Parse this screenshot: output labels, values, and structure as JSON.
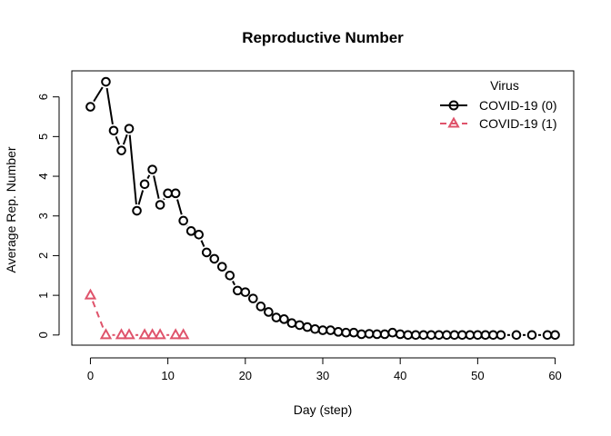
{
  "chart_data": {
    "type": "line",
    "title": "Reproductive Number",
    "xlabel": "Day (step)",
    "ylabel": "Average Rep. Number",
    "xlim": [
      -2.4,
      62.4
    ],
    "ylim": [
      -0.256,
      6.656
    ],
    "x_ticks": [
      0,
      10,
      20,
      30,
      40,
      50,
      60
    ],
    "y_ticks": [
      0,
      1,
      2,
      3,
      4,
      5,
      6
    ],
    "grid": false,
    "legend": {
      "title": "Virus",
      "position": "top-right"
    },
    "series": [
      {
        "name": "COVID-19 (0)",
        "color": "#000000",
        "line_style": "solid",
        "marker": "circle",
        "x": [
          0,
          2,
          3,
          4,
          5,
          6,
          7,
          8,
          9,
          10,
          11,
          12,
          13,
          14,
          15,
          16,
          17,
          18,
          19,
          20,
          21,
          22,
          23,
          24,
          25,
          26,
          27,
          28,
          29,
          30,
          31,
          32,
          33,
          34,
          35,
          36,
          37,
          38,
          39,
          40,
          41,
          42,
          43,
          44,
          45,
          46,
          47,
          48,
          49,
          50,
          51,
          52,
          53,
          55,
          57,
          59,
          60
        ],
        "y": [
          5.75,
          6.38,
          5.15,
          4.65,
          5.2,
          3.13,
          3.8,
          4.17,
          3.28,
          3.57,
          3.57,
          2.88,
          2.62,
          2.53,
          2.08,
          1.92,
          1.72,
          1.5,
          1.12,
          1.08,
          0.92,
          0.72,
          0.58,
          0.44,
          0.4,
          0.3,
          0.25,
          0.2,
          0.15,
          0.12,
          0.12,
          0.08,
          0.06,
          0.06,
          0.02,
          0.03,
          0.02,
          0.02,
          0.06,
          0.02,
          0.0,
          0.0,
          0.0,
          0.0,
          0.0,
          0.0,
          0.0,
          0.0,
          0.0,
          0.0,
          0.0,
          0.0,
          0.0,
          0.0,
          0.0,
          0.0,
          0.0
        ]
      },
      {
        "name": "COVID-19 (1)",
        "color": "#DF536B",
        "line_style": "dashed",
        "marker": "triangle",
        "x": [
          0,
          2,
          4,
          5,
          7,
          8,
          9,
          11,
          12
        ],
        "y": [
          1.0,
          0.0,
          0.0,
          0.0,
          0.0,
          0.0,
          0.0,
          0.0,
          0.0
        ]
      }
    ]
  }
}
